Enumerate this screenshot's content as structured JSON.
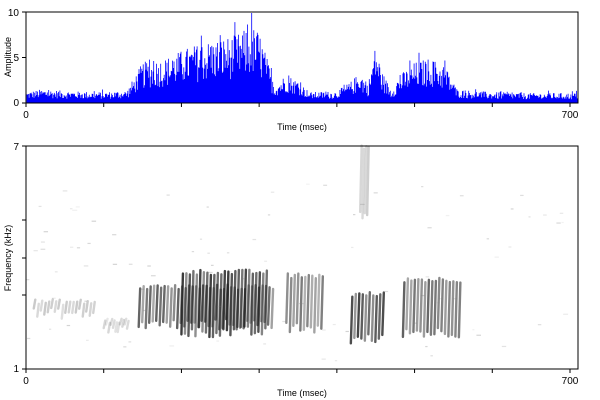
{
  "chart_data": [
    {
      "type": "area",
      "ylabel": "Amplitude",
      "xlabel": "Time (msec)",
      "xlim": [
        0,
        700
      ],
      "ylim": [
        0,
        10
      ],
      "x_ticks": [
        "0",
        "700"
      ],
      "y_ticks": [
        "0",
        "5",
        "10"
      ],
      "grid": false,
      "color": "#0000ff",
      "envelope": [
        {
          "x": 0,
          "y": 1.2
        },
        {
          "x": 20,
          "y": 1.5
        },
        {
          "x": 60,
          "y": 1.3
        },
        {
          "x": 100,
          "y": 1.2
        },
        {
          "x": 130,
          "y": 1.4
        },
        {
          "x": 150,
          "y": 4.5
        },
        {
          "x": 180,
          "y": 5.0
        },
        {
          "x": 210,
          "y": 6.2
        },
        {
          "x": 240,
          "y": 7.0
        },
        {
          "x": 270,
          "y": 7.5
        },
        {
          "x": 290,
          "y": 8.5
        },
        {
          "x": 300,
          "y": 8.0
        },
        {
          "x": 310,
          "y": 5.0
        },
        {
          "x": 320,
          "y": 2.0
        },
        {
          "x": 335,
          "y": 3.2
        },
        {
          "x": 350,
          "y": 2.5
        },
        {
          "x": 365,
          "y": 1.2
        },
        {
          "x": 400,
          "y": 1.3
        },
        {
          "x": 420,
          "y": 2.5
        },
        {
          "x": 430,
          "y": 3.5
        },
        {
          "x": 440,
          "y": 2.0
        },
        {
          "x": 450,
          "y": 6.5
        },
        {
          "x": 458,
          "y": 3.5
        },
        {
          "x": 470,
          "y": 1.5
        },
        {
          "x": 480,
          "y": 3.0
        },
        {
          "x": 500,
          "y": 4.5
        },
        {
          "x": 520,
          "y": 5.0
        },
        {
          "x": 540,
          "y": 4.0
        },
        {
          "x": 555,
          "y": 1.5
        },
        {
          "x": 600,
          "y": 1.2
        },
        {
          "x": 650,
          "y": 1.1
        },
        {
          "x": 700,
          "y": 1.1
        }
      ]
    },
    {
      "type": "heatmap",
      "ylabel": "Frequency (kHz)",
      "xlabel": "Time (msec)",
      "xlim": [
        0,
        700
      ],
      "ylim": [
        1,
        7
      ],
      "x_ticks": [
        "0",
        "700"
      ],
      "y_ticks": [
        "1",
        "7"
      ],
      "grid": false,
      "colormap": "gray_r",
      "regions": [
        {
          "t0": 145,
          "t1": 320,
          "f_low": 2.2,
          "f_high": 3.2,
          "intensity": 0.7
        },
        {
          "t0": 200,
          "t1": 310,
          "f_low": 2.0,
          "f_high": 3.6,
          "intensity": 0.9
        },
        {
          "t0": 335,
          "t1": 380,
          "f_low": 2.1,
          "f_high": 3.5,
          "intensity": 0.6
        },
        {
          "t0": 418,
          "t1": 460,
          "f_low": 1.8,
          "f_high": 3.0,
          "intensity": 0.85
        },
        {
          "t0": 485,
          "t1": 560,
          "f_low": 2.0,
          "f_high": 3.4,
          "intensity": 0.7
        },
        {
          "t0": 430,
          "t1": 440,
          "f_low": 5.2,
          "f_high": 7.0,
          "intensity": 0.25
        },
        {
          "t0": 10,
          "t1": 90,
          "f_low": 2.5,
          "f_high": 2.8,
          "intensity": 0.25
        },
        {
          "t0": 100,
          "t1": 130,
          "f_low": 2.1,
          "f_high": 2.3,
          "intensity": 0.2
        }
      ]
    }
  ]
}
